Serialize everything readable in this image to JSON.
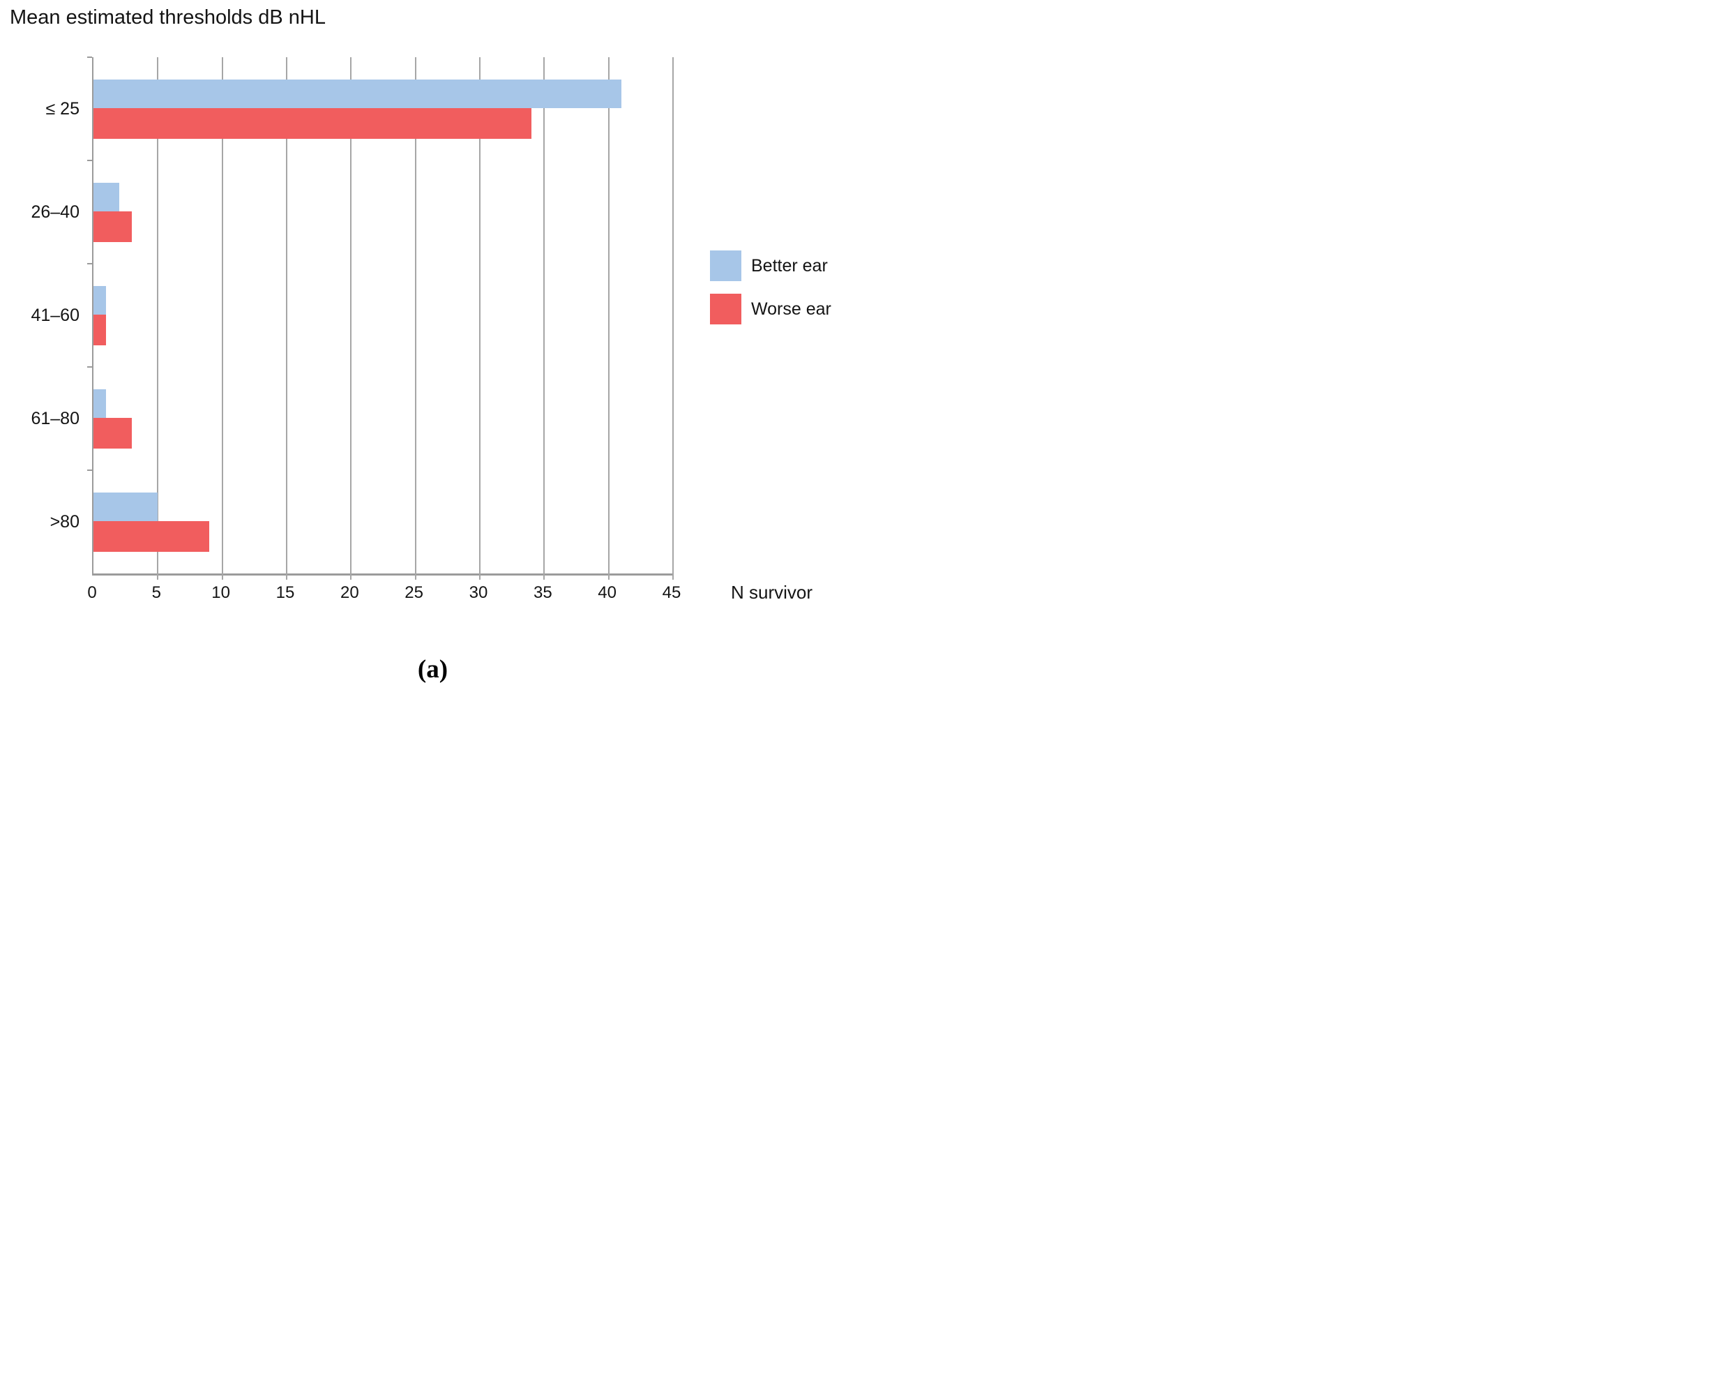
{
  "caption": "(a)",
  "colors": {
    "better_ear": "#A7C6E8",
    "worse_ear": "#F15D5E",
    "gridline": "#A6A6A6",
    "axis": "#9B9B9B"
  },
  "chart_data": {
    "type": "bar",
    "orientation": "horizontal",
    "title": "Mean estimated thresholds dB nHL",
    "categories": [
      "≤ 25",
      "26–40",
      "41–60",
      "61–80",
      ">80"
    ],
    "series": [
      {
        "name": "Better ear",
        "color": "#A7C6E8",
        "values": [
          41,
          2,
          1,
          1,
          5
        ]
      },
      {
        "name": "Worse ear",
        "color": "#F15D5E",
        "values": [
          34,
          3,
          1,
          3,
          9
        ]
      }
    ],
    "xlabel": "N survivor",
    "xlim": [
      0,
      45
    ],
    "x_ticks": [
      0,
      5,
      10,
      15,
      20,
      25,
      30,
      35,
      40,
      45
    ],
    "grid": true,
    "legend_position": "right"
  }
}
